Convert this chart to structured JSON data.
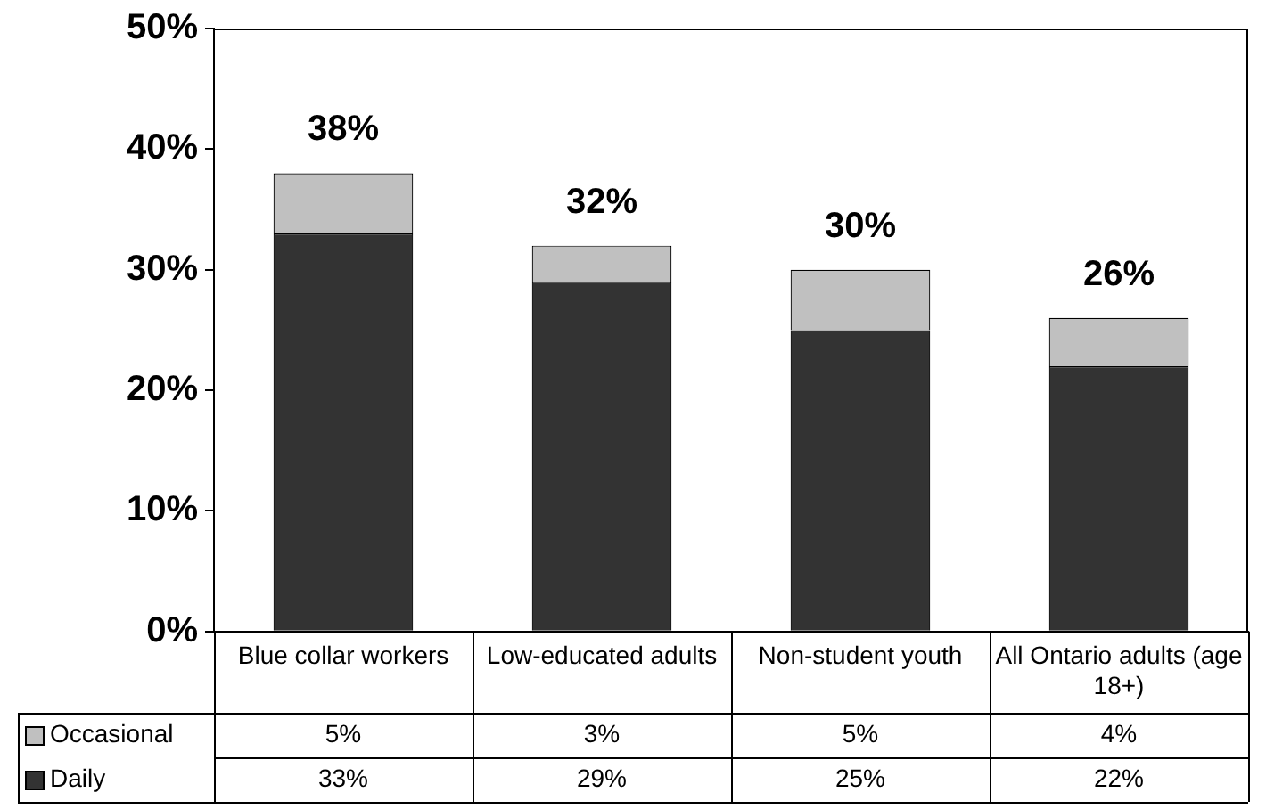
{
  "chart_data": {
    "type": "bar",
    "stacked": true,
    "categories": [
      "Blue collar workers",
      "Low-educated adults",
      "Non-student youth",
      "All Ontario adults (age 18+)"
    ],
    "series": [
      {
        "name": "Daily",
        "color": "#333333",
        "values": [
          33,
          29,
          25,
          22
        ],
        "value_labels": [
          "33%",
          "29%",
          "25%",
          "22%"
        ]
      },
      {
        "name": "Occasional",
        "color": "#c0c0c0",
        "values": [
          5,
          3,
          5,
          4
        ],
        "value_labels": [
          "5%",
          "3%",
          "5%",
          "4%"
        ]
      }
    ],
    "totals": [
      "38%",
      "32%",
      "30%",
      "26%"
    ],
    "ylim": [
      0,
      50
    ],
    "yticks": [
      {
        "value": 0,
        "label": "0%"
      },
      {
        "value": 10,
        "label": "10%"
      },
      {
        "value": 20,
        "label": "20%"
      },
      {
        "value": 30,
        "label": "30%"
      },
      {
        "value": 40,
        "label": "40%"
      },
      {
        "value": 50,
        "label": "50%"
      }
    ],
    "grid": false,
    "legend": "bottom"
  }
}
